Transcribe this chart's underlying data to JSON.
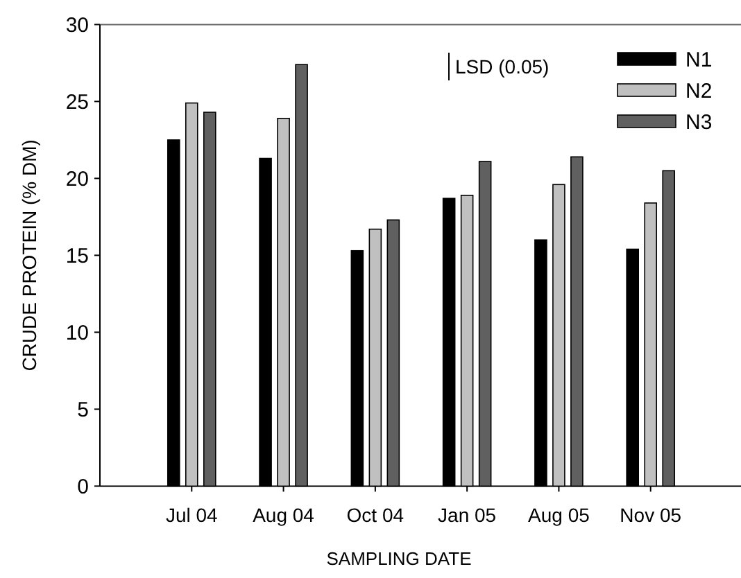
{
  "chart_data": {
    "type": "bar",
    "xlabel": "SAMPLING DATE",
    "ylabel": "CRUDE PROTEIN (% DM)",
    "categories": [
      "Jul 04",
      "Aug 04",
      "Oct 04",
      "Jan 05",
      "Aug 05",
      "Nov 05"
    ],
    "series": [
      {
        "name": "N1",
        "color": "#000000",
        "values": [
          22.5,
          21.3,
          15.3,
          18.7,
          16.0,
          15.4
        ]
      },
      {
        "name": "N2",
        "color": "#c0c0c0",
        "values": [
          24.9,
          23.9,
          16.7,
          18.9,
          19.6,
          18.4
        ]
      },
      {
        "name": "N3",
        "color": "#606060",
        "values": [
          24.3,
          27.4,
          17.3,
          21.1,
          21.4,
          20.5
        ]
      }
    ],
    "ylim": [
      0,
      30
    ],
    "yticks": [
      0,
      5,
      10,
      15,
      20,
      25,
      30
    ],
    "grid": false,
    "legend": "top right",
    "annotations": [
      "LSD (0.05)"
    ]
  }
}
